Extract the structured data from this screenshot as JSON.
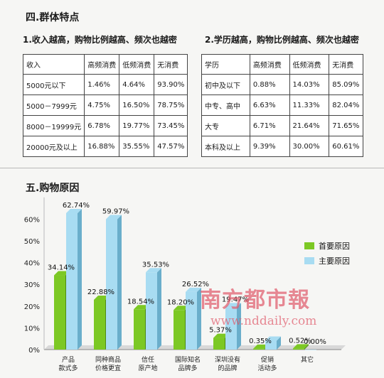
{
  "section4": {
    "title": "四.群体特点"
  },
  "table1": {
    "title": "1.收入越高，购物比例越高、频次也越密",
    "headers": [
      "收入",
      "高频消费",
      "低频消费",
      "无消费"
    ],
    "rows": [
      [
        "5000元以下",
        "1.46%",
        "4.64%",
        "93.90%"
      ],
      [
        "5000－7999元",
        "4.75%",
        "16.50%",
        "78.75%"
      ],
      [
        "8000－19999元",
        "6.78%",
        "19.77%",
        "73.45%"
      ],
      [
        "20000元及以上",
        "16.88%",
        "35.55%",
        "47.57%"
      ]
    ]
  },
  "table2": {
    "title": "2.学历越高，购物比例越高、频次也越密",
    "headers": [
      "学历",
      "高频消费",
      "低频消费",
      "无消费"
    ],
    "rows": [
      [
        "初中及以下",
        "0.88%",
        "14.03%",
        "85.09%"
      ],
      [
        "中专、高中",
        "6.63%",
        "11.33%",
        "82.04%"
      ],
      [
        "大专",
        "6.71%",
        "21.64%",
        "71.65%"
      ],
      [
        "本科及以上",
        "9.39%",
        "30.00%",
        "60.61%"
      ]
    ]
  },
  "section5": {
    "title": "五.购物原因"
  },
  "watermark": {
    "name": "南方都市報",
    "url": "www.nddaily.com"
  },
  "chart_data": {
    "type": "bar",
    "categories": [
      [
        "产品",
        "款式多"
      ],
      [
        "同种商品",
        "价格更宜"
      ],
      [
        "信任",
        "原产地"
      ],
      [
        "国际知名",
        "品牌多"
      ],
      [
        "深圳没有",
        "的品牌"
      ],
      [
        "促销",
        "活动多"
      ],
      [
        "其它"
      ]
    ],
    "series": [
      {
        "name": "首要原因",
        "color": "#7cc824",
        "values": [
          34.14,
          22.88,
          18.54,
          18.2,
          5.37,
          0.35,
          0.52
        ]
      },
      {
        "name": "主要原因",
        "color": "#a8dcf2",
        "values": [
          62.74,
          59.97,
          35.53,
          26.52,
          19.47,
          4.08,
          0.0
        ]
      }
    ],
    "value_labels": [
      [
        "34.14%",
        "22.88%",
        "18.54%",
        "18.20%",
        "5.37%",
        "0.35%",
        "0.52%"
      ],
      [
        "62.74%",
        "59.97%",
        "35.53%",
        "26.52%",
        "19.47%",
        "",
        "0.00%"
      ]
    ],
    "yticks": [
      "0%",
      "10%",
      "20%",
      "30%",
      "40%",
      "50%",
      "60%"
    ],
    "ylim": [
      0,
      70
    ],
    "legend": "right"
  }
}
